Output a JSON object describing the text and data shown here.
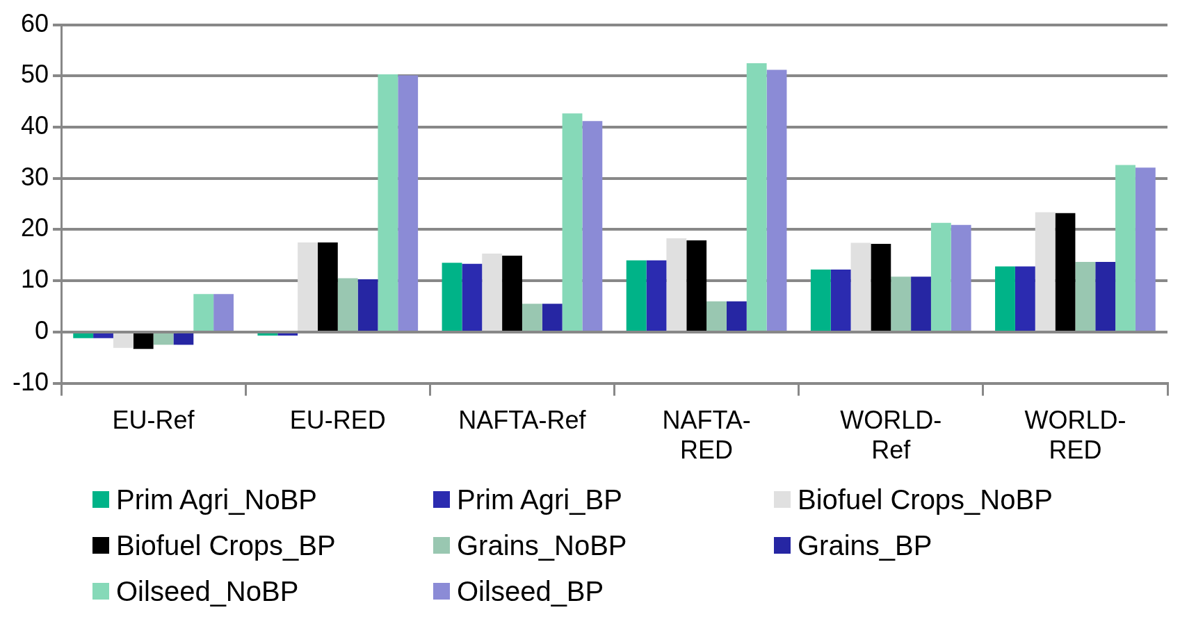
{
  "chart_data": {
    "type": "bar",
    "categories": [
      "EU-Ref",
      "EU-RED",
      "NAFTA-Ref",
      "NAFTA-RED",
      "WORLD-Ref",
      "WORLD-RED"
    ],
    "series": [
      {
        "name": "Prim Agri_NoBP",
        "color": "#00b388",
        "values": [
          -1.2,
          -0.7,
          13.5,
          14.0,
          12.2,
          12.8
        ]
      },
      {
        "name": "Prim Agri_BP",
        "color": "#2b2bb0",
        "values": [
          -1.2,
          -0.7,
          13.3,
          14.0,
          12.2,
          12.8
        ]
      },
      {
        "name": "Biofuel Crops_NoBP",
        "color": "#e0e0e0",
        "values": [
          -3.1,
          17.5,
          15.3,
          18.3,
          17.4,
          23.4
        ]
      },
      {
        "name": "Biofuel Crops_BP",
        "color": "#000000",
        "values": [
          -3.3,
          17.5,
          14.9,
          17.9,
          17.2,
          23.2
        ]
      },
      {
        "name": "Grains_NoBP",
        "color": "#99c7b1",
        "values": [
          -2.5,
          10.5,
          5.5,
          6.0,
          10.8,
          13.7
        ]
      },
      {
        "name": "Grains_BP",
        "color": "#2626a3",
        "values": [
          -2.5,
          10.3,
          5.5,
          6.0,
          10.8,
          13.7
        ]
      },
      {
        "name": "Oilseed_NoBP",
        "color": "#86d9b8",
        "values": [
          7.4,
          50.3,
          42.7,
          52.5,
          21.3,
          32.6
        ]
      },
      {
        "name": "Oilseed_BP",
        "color": "#8b8bd6",
        "values": [
          7.4,
          50.1,
          41.2,
          51.2,
          20.9,
          32.1
        ]
      }
    ],
    "ylim": [
      -10,
      60
    ],
    "yticks": [
      -10,
      0,
      10,
      20,
      30,
      40,
      50,
      60
    ],
    "grid": "y",
    "legend": "bottom"
  }
}
